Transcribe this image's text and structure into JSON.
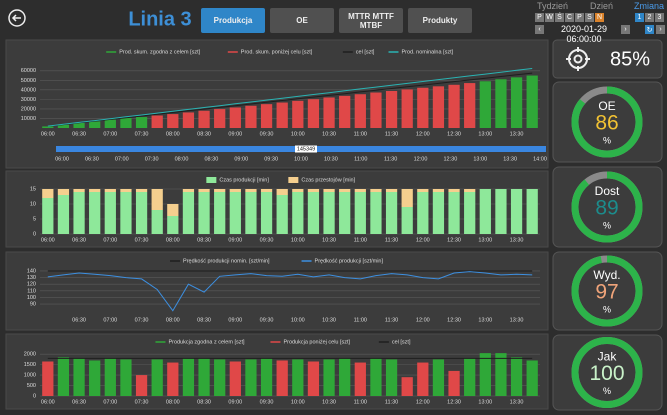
{
  "header": {
    "title": "Linia 3",
    "tabs": [
      "Produkcja",
      "OE",
      "MTTR MTTF MTBF",
      "Produkty"
    ],
    "active_tab": 0,
    "period_labels": [
      "Tydzień",
      "Dzień",
      "Zmiana"
    ],
    "days": [
      "P",
      "W",
      "Ś",
      "C",
      "P",
      "S",
      "N"
    ],
    "highlight_day": 6,
    "shifts": [
      "1",
      "2",
      "3"
    ],
    "active_shift": 0,
    "date": "2020-01-29 06:00:00"
  },
  "kpi": "85%",
  "gauges": [
    {
      "label": "OE",
      "value": 86,
      "unit": "%",
      "color": "#f2c233"
    },
    {
      "label": "Dost",
      "value": 89,
      "unit": "%",
      "color": "#1c8c8c"
    },
    {
      "label": "Wyd.",
      "value": 97,
      "unit": "%",
      "color": "#f0a47a"
    },
    {
      "label": "Jak",
      "value": 100,
      "unit": "%",
      "color": "#c9f2c9"
    }
  ],
  "chart_data": [
    {
      "type": "bar",
      "categories": [
        "06:00",
        null,
        "06:30",
        null,
        "07:00",
        null,
        "07:30",
        null,
        "08:00",
        null,
        "08:30",
        null,
        "09:00",
        null,
        "09:30",
        null,
        "10:00",
        null,
        "10:30",
        null,
        "11:00",
        null,
        "11:30",
        null,
        "12:00",
        null,
        "12:30",
        null,
        "13:00",
        null,
        "13:30",
        null
      ],
      "series": [
        {
          "name": "Prod. skum. zgodna z celem [szt]",
          "color": "#2fa838",
          "kind": "bar",
          "values": [
            1650,
            3450,
            5250,
            6950,
            8750,
            10500,
            11500,
            null,
            null,
            null,
            null,
            null,
            null,
            null,
            null,
            null,
            null,
            null,
            null,
            null,
            null,
            null,
            null,
            null,
            null,
            null,
            null,
            null,
            49000,
            51100,
            53100,
            55000
          ]
        },
        {
          "name": "Prod. skum. poniżej celu [szt]",
          "color": "#e04848",
          "kind": "bar",
          "values": [
            null,
            null,
            null,
            null,
            null,
            null,
            null,
            13100,
            14600,
            16300,
            18100,
            19850,
            21500,
            23300,
            25000,
            26700,
            28500,
            30200,
            32000,
            33700,
            35400,
            37200,
            38800,
            40500,
            42200,
            43700,
            45300,
            47100,
            null,
            null,
            null,
            null
          ]
        },
        {
          "name": "cel [szt]",
          "color": "#1e1e1e",
          "kind": "line",
          "values": [
            1800,
            3600,
            5400,
            7200,
            9000,
            10800,
            12600,
            14400,
            16200,
            18000,
            19800,
            21600,
            23400,
            25200,
            27000,
            28800,
            30600,
            32400,
            34200,
            36000,
            37800,
            39600,
            41400,
            43200,
            45000,
            46800,
            48600,
            50400,
            52200,
            54000,
            55800,
            57600
          ]
        },
        {
          "name": "Prod. nominalna [szt]",
          "color": "#2ab3b3",
          "kind": "line",
          "values": [
            1950,
            3900,
            5850,
            7800,
            9750,
            11700,
            13650,
            15600,
            17550,
            19500,
            21450,
            23400,
            25350,
            27300,
            29250,
            31200,
            33150,
            35100,
            37050,
            39000,
            40950,
            42900,
            44850,
            46800,
            48750,
            50700,
            52650,
            54600,
            56550,
            58500,
            60450,
            62400
          ]
        }
      ],
      "ylim": [
        0,
        65000
      ],
      "yticks": [
        10000,
        20000,
        30000,
        40000,
        50000,
        60000
      ],
      "grid": true,
      "navigator": {
        "label": "145349",
        "color": "#3a86e0",
        "ticks": [
          "06:00",
          "06:30",
          "07:00",
          "07:30",
          "08:00",
          "08:30",
          "09:00",
          "09:30",
          "10:00",
          "10:30",
          "11:00",
          "11:30",
          "12:00",
          "12:30",
          "13:00",
          "13:30",
          "14:00"
        ]
      }
    },
    {
      "type": "stacked_bar",
      "categories": [
        "06:00",
        null,
        "06:30",
        null,
        "07:00",
        null,
        "07:30",
        null,
        "08:00",
        null,
        "08:30",
        null,
        "09:00",
        null,
        "09:30",
        null,
        "10:00",
        null,
        "10:30",
        null,
        "11:00",
        null,
        "11:30",
        null,
        "12:00",
        null,
        "12:30",
        null,
        "13:00",
        null,
        "13:30",
        null
      ],
      "series": [
        {
          "name": "Czas produkcji [min]",
          "color": "#8ee89a",
          "kind": "bar",
          "values": [
            12,
            13,
            14,
            14,
            14,
            14,
            14,
            8,
            6,
            14,
            14,
            14,
            14,
            14,
            14,
            13,
            14,
            14,
            14,
            14,
            14,
            14,
            14,
            9,
            14,
            14,
            14,
            14,
            15,
            15,
            15,
            15
          ]
        },
        {
          "name": "Czas przestojów [min]",
          "color": "#f5cf8e",
          "kind": "bar",
          "values": [
            3,
            2,
            1,
            1,
            1,
            1,
            1,
            7,
            4,
            1,
            1,
            1,
            1,
            1,
            1,
            2,
            1,
            1,
            1,
            1,
            1,
            1,
            1,
            6,
            1,
            1,
            1,
            1,
            0,
            0,
            0,
            0
          ]
        }
      ],
      "ylim": [
        0,
        16
      ],
      "yticks": [
        0,
        5,
        10,
        15
      ],
      "grid": true
    },
    {
      "type": "line",
      "categories": [
        null,
        null,
        "06:30",
        null,
        "07:00",
        null,
        "07:30",
        null,
        "08:00",
        null,
        "08:30",
        null,
        "09:00",
        null,
        "09:30",
        null,
        "10:00",
        null,
        "10:30",
        null,
        "11:00",
        null,
        "11:30",
        null,
        "12:00",
        null,
        "12:30",
        null,
        "13:00",
        null,
        "13:30",
        null
      ],
      "series": [
        {
          "name": "Prędkość produkcji nomin. [szt/min]",
          "color": "#1e1e1e",
          "kind": "line",
          "values": [
            140,
            140,
            140,
            140,
            140,
            140,
            140,
            140,
            140,
            140,
            140,
            140,
            140,
            140,
            140,
            140,
            140,
            140,
            140,
            140,
            140,
            140,
            140,
            140,
            140,
            140,
            140,
            140,
            140,
            140,
            140,
            140
          ]
        },
        {
          "name": "Prędkość produkcji [szt/min]",
          "color": "#3d8fe0",
          "kind": "line",
          "values": [
            131,
            134,
            137,
            135,
            133,
            130,
            128,
            112,
            80,
            120,
            108,
            132,
            134,
            136,
            133,
            132,
            135,
            131,
            134,
            130,
            128,
            133,
            136,
            134,
            130,
            128,
            137,
            139,
            137,
            134,
            135,
            134
          ]
        }
      ],
      "ylim": [
        78,
        146
      ],
      "yticks": [
        90,
        100,
        110,
        120,
        130,
        140
      ],
      "grid": true
    },
    {
      "type": "bar",
      "categories": [
        "06:00",
        null,
        "06:30",
        null,
        "07:00",
        null,
        "07:30",
        null,
        "08:00",
        null,
        "08:30",
        null,
        "09:00",
        null,
        "09:30",
        null,
        "10:00",
        null,
        "10:30",
        null,
        "11:00",
        null,
        "11:30",
        null,
        "12:00",
        null,
        "12:30",
        null,
        "13:00",
        null,
        "13:30",
        null
      ],
      "series": [
        {
          "name": "Produkcja zgodna z celem [szt]",
          "color": "#2fa838",
          "kind": "bar",
          "values": [
            null,
            1850,
            1800,
            1700,
            1800,
            1750,
            null,
            1750,
            null,
            1800,
            1800,
            1750,
            null,
            1750,
            1800,
            null,
            1750,
            null,
            1750,
            1800,
            null,
            1800,
            1750,
            null,
            null,
            1750,
            null,
            1800,
            2050,
            2050,
            1850,
            1700
          ]
        },
        {
          "name": "Produkcja poniżej celu [szt]",
          "color": "#e04848",
          "kind": "bar",
          "values": [
            1650,
            null,
            null,
            null,
            null,
            null,
            1000,
            null,
            1600,
            null,
            null,
            null,
            1650,
            null,
            null,
            1700,
            null,
            1650,
            null,
            null,
            1600,
            null,
            null,
            900,
            1600,
            null,
            1200,
            null,
            null,
            null,
            null,
            null
          ]
        },
        {
          "name": "cel [szt]",
          "color": "#1e1e1e",
          "kind": "line",
          "values": [
            1800,
            1800,
            1800,
            1800,
            1800,
            1800,
            1800,
            1800,
            1800,
            1800,
            1800,
            1800,
            1800,
            1800,
            1800,
            1800,
            1800,
            1800,
            1800,
            1800,
            1800,
            1800,
            1800,
            1800,
            1800,
            1800,
            1800,
            1800,
            1800,
            1800,
            1800,
            1800
          ]
        }
      ],
      "ylim": [
        0,
        2200
      ],
      "yticks": [
        0,
        500,
        1000,
        1500,
        2000
      ],
      "grid": true
    }
  ]
}
